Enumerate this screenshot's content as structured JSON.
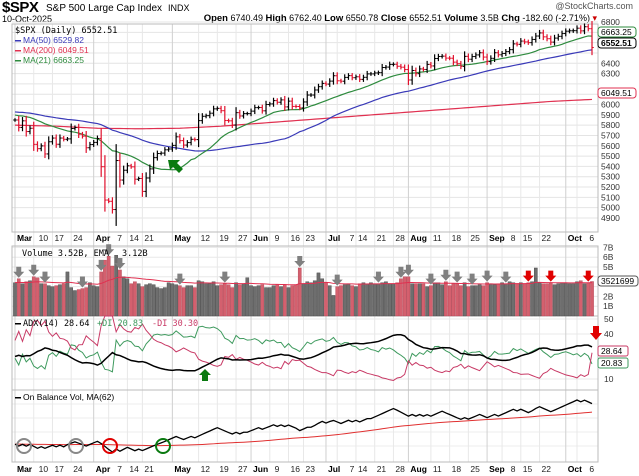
{
  "header": {
    "symbol": "$SPX",
    "name": "S&P 500 Large Cap Index",
    "exchange": "INDX",
    "watermark": "@StockCharts.com",
    "date": "10-Oct-2025",
    "open_label": "Open",
    "open": "6740.49",
    "high_label": "High",
    "high": "6762.40",
    "low_label": "Low",
    "low": "6550.78",
    "close_label": "Close",
    "close": "6552.51",
    "volume_label": "Volume",
    "volume": "3.5B",
    "chg_label": "Chg",
    "chg": "-182.60 (-2.71%)",
    "chg_icon": "triangle-down"
  },
  "legends": {
    "price": "$SPX (Daily) 6552.51",
    "ma50": "MA(50) 6529.82",
    "ma200": "MA(200) 6049.51",
    "ma21": "MA(21) 6663.25",
    "volume": "Volume 3.52B, EMA",
    "volume_ema": "3.12B",
    "adx": "ADX(14) 28.64",
    "pdi": "+DI 20.83",
    "mdi": "-DI 30.30",
    "obv": "On Balance Vol, MA(62)"
  },
  "tags": {
    "ma21": "6663.25",
    "close": "6552.51",
    "ma200": "6049.51",
    "volume": "3521699",
    "adx": "28.64",
    "pdi": "20.83"
  },
  "colors": {
    "up": "#000000",
    "down": "#e0102c",
    "ma50": "#3a3ab8",
    "ma200": "#e03050",
    "ma21": "#2e8b3e",
    "volume_up": "#6e6e6e",
    "volume_down": "#d4606e",
    "pdi": "#3e9a5e",
    "mdi": "#c83a66",
    "adx": "#000000",
    "arrow_gray": "#808080",
    "arrow_red": "#e00000",
    "arrow_green": "#0a7a10"
  },
  "chart_data": {
    "type": "ohlc",
    "interval": "daily",
    "price_axis": {
      "min": 4900,
      "max": 6800,
      "step": 100
    },
    "volume_axis": [
      "1B",
      "2B",
      "3B",
      "4B",
      "5B",
      "6B",
      "7B"
    ],
    "adx_axis": [
      10,
      40,
      50
    ],
    "x_ticks": [
      {
        "label": "Mar",
        "date": "3/3",
        "major": true
      },
      {
        "label": "10",
        "date": "3/10"
      },
      {
        "label": "17",
        "date": "3/17"
      },
      {
        "label": "24",
        "date": "3/24"
      },
      {
        "label": "Apr",
        "date": "4/1",
        "major": true
      },
      {
        "label": "7",
        "date": "4/7"
      },
      {
        "label": "14",
        "date": "4/14"
      },
      {
        "label": "21",
        "date": "4/21"
      },
      {
        "label": "May",
        "date": "5/1",
        "major": true
      },
      {
        "label": "12",
        "date": "5/12"
      },
      {
        "label": "19",
        "date": "5/19"
      },
      {
        "label": "27",
        "date": "5/27"
      },
      {
        "label": "Jun",
        "date": "6/2",
        "major": true
      },
      {
        "label": "9",
        "date": "6/9"
      },
      {
        "label": "16",
        "date": "6/16"
      },
      {
        "label": "23",
        "date": "6/23"
      },
      {
        "label": "Jul",
        "date": "7/1",
        "major": true
      },
      {
        "label": "7",
        "date": "7/7"
      },
      {
        "label": "14",
        "date": "7/14"
      },
      {
        "label": "21",
        "date": "7/21"
      },
      {
        "label": "28",
        "date": "7/28"
      },
      {
        "label": "Aug",
        "date": "8/1",
        "major": true
      },
      {
        "label": "11",
        "date": "8/11"
      },
      {
        "label": "18",
        "date": "8/18"
      },
      {
        "label": "25",
        "date": "8/25"
      },
      {
        "label": "Sep",
        "date": "9/2",
        "major": true
      },
      {
        "label": "8",
        "date": "9/8"
      },
      {
        "label": "15",
        "date": "9/15"
      },
      {
        "label": "22",
        "date": "9/22"
      },
      {
        "label": "Oct",
        "date": "10/1",
        "major": true
      },
      {
        "label": "6",
        "date": "10/6"
      }
    ],
    "dates": [
      "3/3",
      "3/4",
      "3/5",
      "3/6",
      "3/7",
      "3/10",
      "3/11",
      "3/12",
      "3/13",
      "3/14",
      "3/17",
      "3/18",
      "3/19",
      "3/20",
      "3/21",
      "3/24",
      "3/25",
      "3/26",
      "3/27",
      "3/28",
      "3/31",
      "4/1",
      "4/2",
      "4/3",
      "4/4",
      "4/7",
      "4/8",
      "4/9",
      "4/10",
      "4/11",
      "4/14",
      "4/15",
      "4/16",
      "4/17",
      "4/21",
      "4/22",
      "4/23",
      "4/24",
      "4/25",
      "4/28",
      "4/29",
      "4/30",
      "5/1",
      "5/2",
      "5/5",
      "5/6",
      "5/7",
      "5/8",
      "5/9",
      "5/12",
      "5/13",
      "5/14",
      "5/15",
      "5/16",
      "5/19",
      "5/20",
      "5/21",
      "5/22",
      "5/23",
      "5/27",
      "5/28",
      "5/29",
      "5/30",
      "6/2",
      "6/3",
      "6/4",
      "6/5",
      "6/6",
      "6/9",
      "6/10",
      "6/11",
      "6/12",
      "6/13",
      "6/16",
      "6/17",
      "6/18",
      "6/20",
      "6/23",
      "6/24",
      "6/25",
      "6/26",
      "6/27",
      "6/30",
      "7/1",
      "7/2",
      "7/3",
      "7/7",
      "7/8",
      "7/9",
      "7/10",
      "7/11",
      "7/14",
      "7/15",
      "7/16",
      "7/17",
      "7/18",
      "7/21",
      "7/22",
      "7/23",
      "7/24",
      "7/25",
      "7/28",
      "7/29",
      "7/30",
      "7/31",
      "8/1",
      "8/4",
      "8/5",
      "8/6",
      "8/7",
      "8/8",
      "8/11",
      "8/12",
      "8/13",
      "8/14",
      "8/15",
      "8/18",
      "8/19",
      "8/20",
      "8/21",
      "8/22",
      "8/25",
      "8/26",
      "8/27",
      "8/28",
      "8/29",
      "9/2",
      "9/3",
      "9/4",
      "9/5",
      "9/8",
      "9/9",
      "9/10",
      "9/11",
      "9/12",
      "9/15",
      "9/16",
      "9/17",
      "9/18",
      "9/19",
      "9/22",
      "9/23",
      "9/24",
      "9/25",
      "9/26",
      "9/29",
      "9/30",
      "10/1",
      "10/2",
      "10/3",
      "10/6",
      "10/7",
      "10/8",
      "10/9",
      "10/10"
    ],
    "closes": [
      5850,
      5778,
      5842,
      5738,
      5770,
      5614,
      5572,
      5599,
      5521,
      5639,
      5675,
      5615,
      5675,
      5663,
      5667,
      5768,
      5777,
      5712,
      5693,
      5581,
      5612,
      5633,
      5671,
      5397,
      5074,
      5062,
      4982,
      5457,
      5268,
      5363,
      5406,
      5396,
      5276,
      5283,
      5158,
      5288,
      5376,
      5485,
      5525,
      5529,
      5561,
      5569,
      5604,
      5687,
      5650,
      5607,
      5631,
      5663,
      5660,
      5844,
      5886,
      5892,
      5916,
      5958,
      5963,
      5940,
      5845,
      5842,
      5802,
      5921,
      5889,
      5912,
      5912,
      5936,
      5970,
      5971,
      5939,
      6000,
      6006,
      6038,
      6022,
      6045,
      5977,
      6033,
      5982,
      5981,
      5967,
      6025,
      6092,
      6092,
      6141,
      6173,
      6205,
      6198,
      6227,
      6279,
      6230,
      6226,
      6263,
      6280,
      6260,
      6269,
      6244,
      6264,
      6297,
      6297,
      6306,
      6309,
      6359,
      6363,
      6389,
      6390,
      6371,
      6362,
      6339,
      6238,
      6330,
      6299,
      6345,
      6340,
      6389,
      6374,
      6446,
      6466,
      6469,
      6450,
      6449,
      6411,
      6396,
      6370,
      6467,
      6439,
      6465,
      6481,
      6502,
      6460,
      6416,
      6448,
      6502,
      6482,
      6495,
      6513,
      6532,
      6588,
      6584,
      6615,
      6607,
      6600,
      6631,
      6664,
      6694,
      6656,
      6638,
      6605,
      6644,
      6661,
      6688,
      6711,
      6715,
      6716,
      6740,
      6714,
      6754,
      6735,
      6553
    ],
    "volume_billions": [
      3.4,
      3.8,
      3.3,
      3.5,
      3.6,
      4.0,
      3.9,
      3.3,
      3.3,
      3.1,
      3.0,
      3.1,
      3.2,
      3.3,
      4.5,
      2.9,
      2.6,
      2.7,
      2.8,
      2.9,
      3.4,
      3.1,
      3.0,
      4.5,
      5.7,
      6.1,
      5.1,
      6.2,
      4.7,
      4.0,
      3.8,
      3.3,
      3.5,
      3.3,
      3.0,
      3.2,
      3.3,
      3.2,
      2.9,
      2.8,
      2.9,
      3.4,
      3.3,
      3.2,
      3.1,
      2.9,
      3.1,
      3.1,
      2.9,
      3.6,
      3.5,
      3.3,
      3.3,
      3.5,
      3.1,
      3.2,
      3.3,
      3.2,
      2.9,
      3.4,
      3.2,
      3.3,
      3.9,
      3.1,
      3.0,
      3.1,
      3.2,
      2.9,
      2.9,
      3.1,
      3.2,
      3.0,
      3.2,
      2.9,
      3.1,
      3.2,
      4.9,
      3.3,
      3.5,
      3.4,
      3.6,
      4.4,
      3.8,
      3.4,
      3.1,
      2.1,
      3.0,
      3.1,
      3.2,
      3.3,
      3.1,
      3.0,
      3.3,
      3.4,
      3.3,
      3.4,
      3.3,
      3.3,
      3.4,
      3.5,
      3.3,
      3.3,
      3.4,
      3.8,
      4.0,
      4.0,
      3.3,
      3.3,
      3.3,
      3.3,
      3.0,
      3.1,
      3.4,
      3.4,
      3.2,
      3.5,
      3.1,
      3.3,
      3.3,
      3.1,
      3.4,
      3.0,
      3.1,
      3.1,
      3.2,
      3.1,
      3.4,
      3.3,
      3.2,
      3.3,
      3.4,
      3.3,
      3.5,
      3.4,
      3.3,
      3.4,
      3.3,
      3.4,
      3.5,
      4.9,
      3.4,
      3.3,
      3.3,
      3.4,
      3.2,
      3.3,
      3.4,
      3.4,
      3.3,
      3.3,
      3.5,
      3.6,
      3.3,
      3.4,
      3.52
    ],
    "moving_averages": [
      50,
      200,
      21
    ],
    "ma200_path": [
      5800,
      5790,
      5770,
      5765,
      5770,
      5790,
      5820,
      5850,
      5880,
      5910,
      5940,
      5970,
      6000,
      6030,
      6049.51
    ],
    "indicators": [
      "Volume",
      "ADX(14)",
      "On Balance Vol, MA(62)"
    ]
  }
}
